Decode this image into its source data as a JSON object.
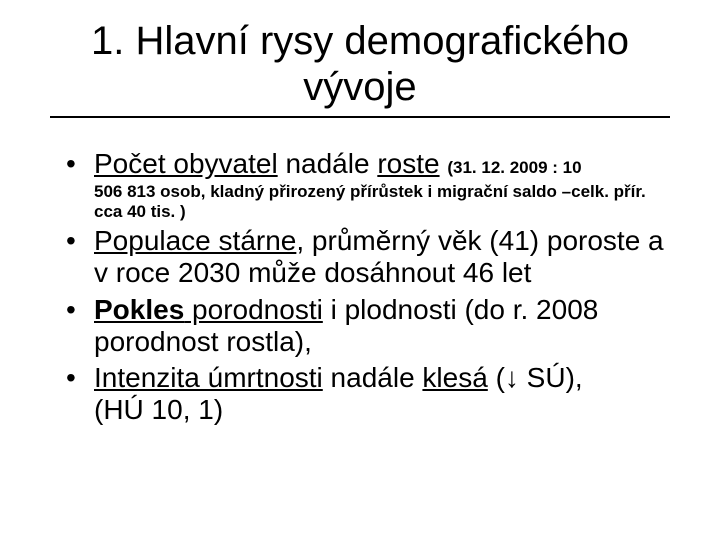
{
  "title_line1": "1. Hlavní rysy demografického",
  "title_line2": "vývoje",
  "bullets": [
    {
      "main_parts": [
        {
          "text": "Počet  obyvatel",
          "u": true
        },
        {
          "text": "  nadále "
        },
        {
          "text": "roste",
          "u": true
        },
        {
          "text": " "
        }
      ],
      "tail_small": "(31. 12. 2009 : 10",
      "sub_small": "506 813 osob, kladný přirozený přírůstek i migrační saldo –celk. přír. cca 40 tis. )"
    },
    {
      "main_parts": [
        {
          "text": "Populace stárne",
          "u": true
        },
        {
          "text": ", průměrný věk (41) poroste  a v roce 2030 může dosáhnout 46 let"
        }
      ]
    },
    {
      "main_parts": [
        {
          "text": "Pokles",
          "b": true,
          "u": true
        },
        {
          "text": " porodnosti",
          "u": true
        },
        {
          "text": " i plodnosti (do r. 2008 porodnost rostla),"
        }
      ]
    },
    {
      "main_parts": [
        {
          "text": "Intenzita úmrtnosti",
          "u": true
        },
        {
          "text": " nadále "
        },
        {
          "text": "klesá",
          "u": true
        },
        {
          "text": " (↓ SÚ),"
        }
      ],
      "line2": " (HÚ 10, 1)"
    }
  ]
}
